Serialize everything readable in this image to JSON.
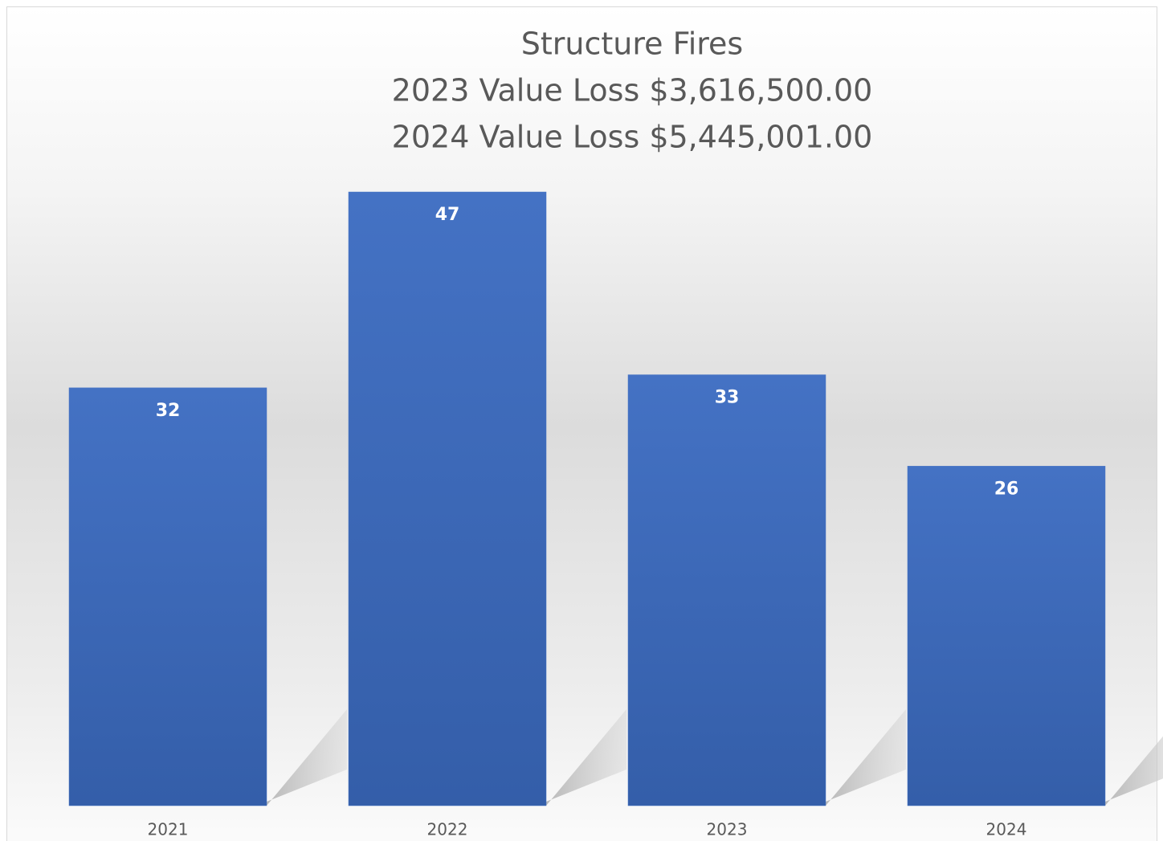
{
  "chart_data": {
    "type": "bar",
    "title": [
      "Structure Fires",
      "2023 Value Loss $3,616,500.00",
      "2024 Value Loss $5,445,001.00"
    ],
    "categories": [
      "2021",
      "2022",
      "2023",
      "2024"
    ],
    "values": [
      32,
      47,
      33,
      26
    ],
    "color": "#4472c4"
  }
}
